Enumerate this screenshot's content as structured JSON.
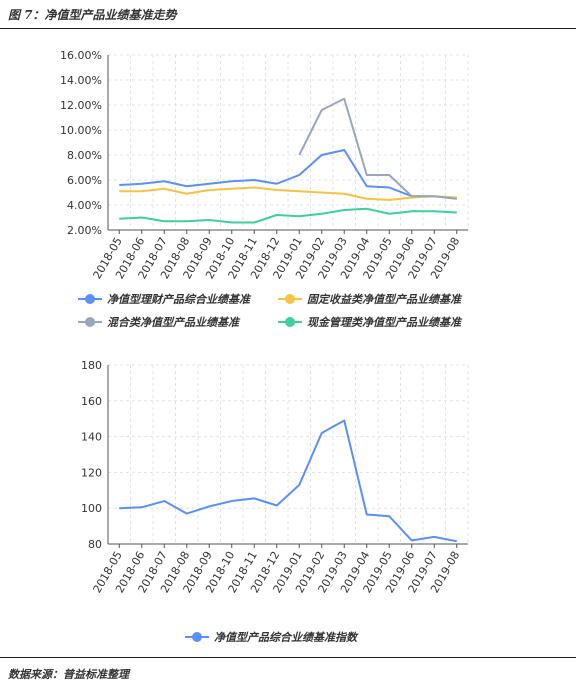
{
  "figure": {
    "title": "图 7：净值型产品业绩基准走势",
    "source": "数据来源：普益标准整理"
  },
  "chart_data": [
    {
      "type": "line",
      "title": "",
      "xlabel": "",
      "ylabel": "",
      "ylim": [
        0.02,
        0.16
      ],
      "yticks": [
        "16.00%",
        "14.00%",
        "12.00%",
        "10.00%",
        "8.00%",
        "6.00%",
        "4.00%",
        "2.00%"
      ],
      "grid": true,
      "legend": "bottom",
      "categories": [
        "2018-05",
        "2018-06",
        "2018-07",
        "2018-08",
        "2018-09",
        "2018-10",
        "2018-11",
        "2018-12",
        "2019-01",
        "2019-02",
        "2019-03",
        "2019-04",
        "2019-05",
        "2019-06",
        "2019-07",
        "2019-08"
      ],
      "series": [
        {
          "name": "净值型理财产品综合业绩基准",
          "color": "#5b8ff9",
          "values": [
            0.056,
            0.057,
            0.059,
            0.055,
            0.057,
            0.059,
            0.06,
            0.057,
            0.064,
            0.08,
            0.084,
            0.055,
            0.054,
            0.047,
            0.047,
            0.045
          ]
        },
        {
          "name": "固定收益类净值型产品业绩基准",
          "color": "#f6c343",
          "values": [
            0.051,
            0.051,
            0.053,
            0.049,
            0.052,
            0.053,
            0.054,
            0.052,
            0.051,
            0.05,
            0.049,
            0.045,
            0.044,
            0.046,
            0.047,
            0.046
          ]
        },
        {
          "name": "混合类净值型产品业绩基准",
          "color": "#9aa5c0",
          "values": [
            null,
            null,
            null,
            null,
            null,
            null,
            null,
            null,
            0.08,
            0.116,
            0.125,
            0.064,
            0.064,
            0.047,
            0.047,
            0.045
          ]
        },
        {
          "name": "现金管理类净值型产品业绩基准",
          "color": "#3ecf9e",
          "values": [
            0.029,
            0.03,
            0.027,
            0.027,
            0.028,
            0.026,
            0.026,
            0.032,
            0.031,
            0.033,
            0.036,
            0.037,
            0.033,
            0.035,
            0.035,
            0.034
          ]
        }
      ]
    },
    {
      "type": "line",
      "title": "",
      "xlabel": "",
      "ylabel": "",
      "ylim": [
        80,
        180
      ],
      "yticks": [
        "180",
        "160",
        "140",
        "120",
        "100",
        "80"
      ],
      "grid": true,
      "legend": "bottom",
      "categories": [
        "2018-05",
        "2018-06",
        "2018-07",
        "2018-08",
        "2018-09",
        "2018-10",
        "2018-11",
        "2018-12",
        "2019-01",
        "2019-02",
        "2019-03",
        "2019-04",
        "2019-05",
        "2019-06",
        "2019-07",
        "2019-08"
      ],
      "series": [
        {
          "name": "净值型产品综合业绩基准指数",
          "color": "#5b8ff9",
          "values": [
            100,
            100.5,
            104,
            97,
            101,
            104,
            105.5,
            101.5,
            113,
            142,
            149,
            96.5,
            95.5,
            82,
            84,
            81.5
          ]
        }
      ]
    }
  ]
}
